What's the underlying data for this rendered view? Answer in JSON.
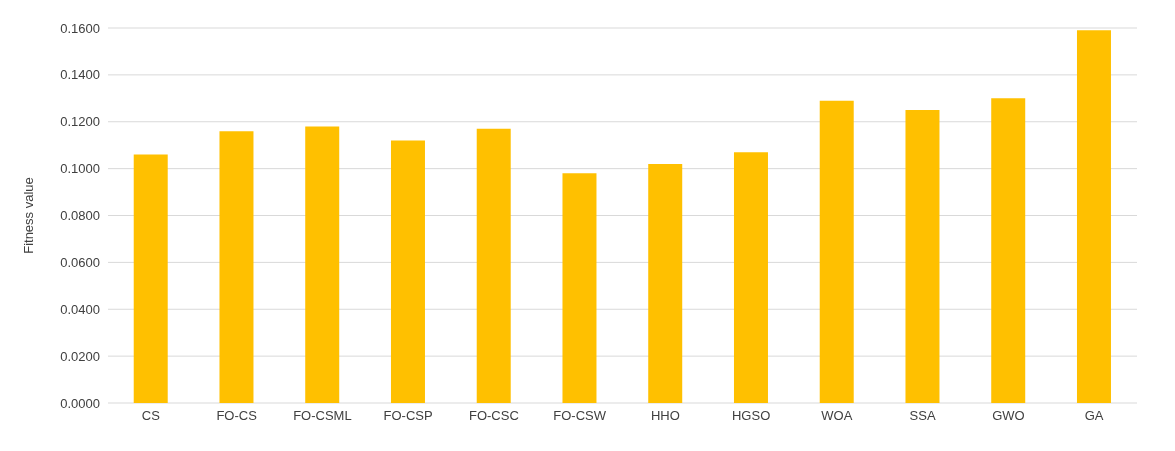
{
  "chart_data": {
    "type": "bar",
    "ylabel": "Fitness value",
    "categories": [
      "CS",
      "FO-CS",
      "FO-CSML",
      "FO-CSP",
      "FO-CSC",
      "FO-CSW",
      "HHO",
      "HGSO",
      "WOA",
      "SSA",
      "GWO",
      "GA"
    ],
    "values": [
      0.106,
      0.116,
      0.118,
      0.112,
      0.117,
      0.098,
      0.102,
      0.107,
      0.129,
      0.125,
      0.13,
      0.159
    ],
    "color": "#ffc000",
    "ylim": [
      0,
      0.16
    ],
    "yticks": [
      {
        "value": 0,
        "label": "0.0000"
      },
      {
        "value": 0.02,
        "label": "0.0200"
      },
      {
        "value": 0.04,
        "label": "0.0400"
      },
      {
        "value": 0.06,
        "label": "0.0600"
      },
      {
        "value": 0.08,
        "label": "0.0800"
      },
      {
        "value": 0.1,
        "label": "0.1000"
      },
      {
        "value": 0.12,
        "label": "0.1200"
      },
      {
        "value": 0.14,
        "label": "0.1400"
      },
      {
        "value": 0.16,
        "label": "0.1600"
      }
    ],
    "grid": "y",
    "legend": false
  }
}
